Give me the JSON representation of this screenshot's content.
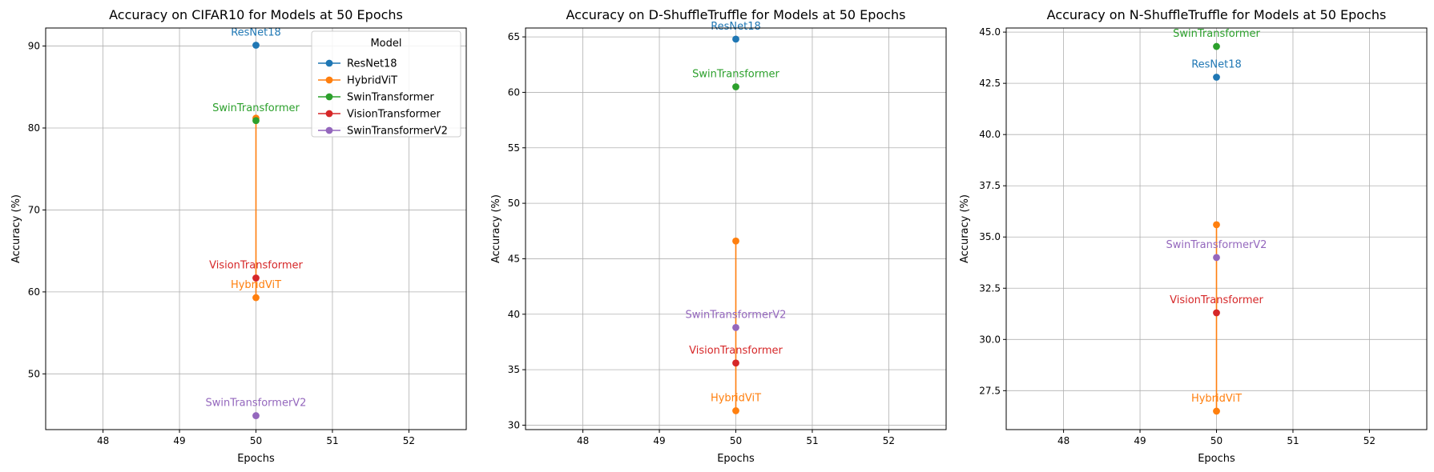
{
  "chart_data": [
    {
      "type": "line",
      "title": "Accuracy on CIFAR10 for Models at 50 Epochs",
      "xlabel": "Epochs",
      "ylabel": "Accuracy (%)",
      "xlim": [
        47.25,
        52.75
      ],
      "ylim": [
        43.2,
        92.2
      ],
      "xticks": [
        48,
        49,
        50,
        51,
        52
      ],
      "yticks": [
        50,
        60,
        70,
        80,
        90
      ],
      "grid": true,
      "legend": {
        "title": "Model",
        "placement": "top-right"
      },
      "series": [
        {
          "name": "ResNet18",
          "color": "#1f77b4",
          "x": [
            50
          ],
          "y": [
            90.1
          ],
          "label": "ResNet18"
        },
        {
          "name": "HybridViT",
          "color": "#ff7f0e",
          "x": [
            50,
            50
          ],
          "y": [
            81.2,
            59.3
          ],
          "label": "HybridViT"
        },
        {
          "name": "SwinTransformer",
          "color": "#2ca02c",
          "x": [
            50
          ],
          "y": [
            80.9
          ],
          "label": "SwinTransformer"
        },
        {
          "name": "VisionTransformer",
          "color": "#d62728",
          "x": [
            50
          ],
          "y": [
            61.7
          ],
          "label": "VisionTransformer"
        },
        {
          "name": "SwinTransformerV2",
          "color": "#9467bd",
          "x": [
            50
          ],
          "y": [
            44.9
          ],
          "label": "SwinTransformerV2"
        }
      ]
    },
    {
      "type": "line",
      "title": "Accuracy on D-ShuffleTruffle for Models at 50 Epochs",
      "xlabel": "Epochs",
      "ylabel": "Accuracy (%)",
      "xlim": [
        47.25,
        52.75
      ],
      "ylim": [
        29.6,
        65.8
      ],
      "xticks": [
        48,
        49,
        50,
        51,
        52
      ],
      "yticks": [
        30,
        35,
        40,
        45,
        50,
        55,
        60,
        65
      ],
      "grid": true,
      "series": [
        {
          "name": "ResNet18",
          "color": "#1f77b4",
          "x": [
            50
          ],
          "y": [
            64.8
          ],
          "label": "ResNet18"
        },
        {
          "name": "HybridViT",
          "color": "#ff7f0e",
          "x": [
            50,
            50
          ],
          "y": [
            46.6,
            31.3
          ],
          "label": "HybridViT"
        },
        {
          "name": "SwinTransformer",
          "color": "#2ca02c",
          "x": [
            50
          ],
          "y": [
            60.5
          ],
          "label": "SwinTransformer"
        },
        {
          "name": "VisionTransformer",
          "color": "#d62728",
          "x": [
            50
          ],
          "y": [
            35.6
          ],
          "label": "VisionTransformer"
        },
        {
          "name": "SwinTransformerV2",
          "color": "#9467bd",
          "x": [
            50
          ],
          "y": [
            38.8
          ],
          "label": "SwinTransformerV2"
        }
      ]
    },
    {
      "type": "line",
      "title": "Accuracy on N-ShuffleTruffle for Models at 50 Epochs",
      "xlabel": "Epochs",
      "ylabel": "Accuracy (%)",
      "xlim": [
        47.25,
        52.75
      ],
      "ylim": [
        25.6,
        45.2
      ],
      "xticks": [
        48,
        49,
        50,
        51,
        52
      ],
      "yticks": [
        27.5,
        30.0,
        32.5,
        35.0,
        37.5,
        40.0,
        42.5,
        45.0
      ],
      "ytick_decimals": 1,
      "grid": true,
      "series": [
        {
          "name": "ResNet18",
          "color": "#1f77b4",
          "x": [
            50
          ],
          "y": [
            42.8
          ],
          "label": "ResNet18"
        },
        {
          "name": "HybridViT",
          "color": "#ff7f0e",
          "x": [
            50,
            50
          ],
          "y": [
            35.6,
            26.5
          ],
          "label": "HybridViT"
        },
        {
          "name": "SwinTransformer",
          "color": "#2ca02c",
          "x": [
            50
          ],
          "y": [
            44.3
          ],
          "label": "SwinTransformer"
        },
        {
          "name": "VisionTransformer",
          "color": "#d62728",
          "x": [
            50
          ],
          "y": [
            31.3
          ],
          "label": "VisionTransformer"
        },
        {
          "name": "SwinTransformerV2",
          "color": "#9467bd",
          "x": [
            50
          ],
          "y": [
            34.0
          ],
          "label": "SwinTransformerV2"
        }
      ]
    }
  ]
}
